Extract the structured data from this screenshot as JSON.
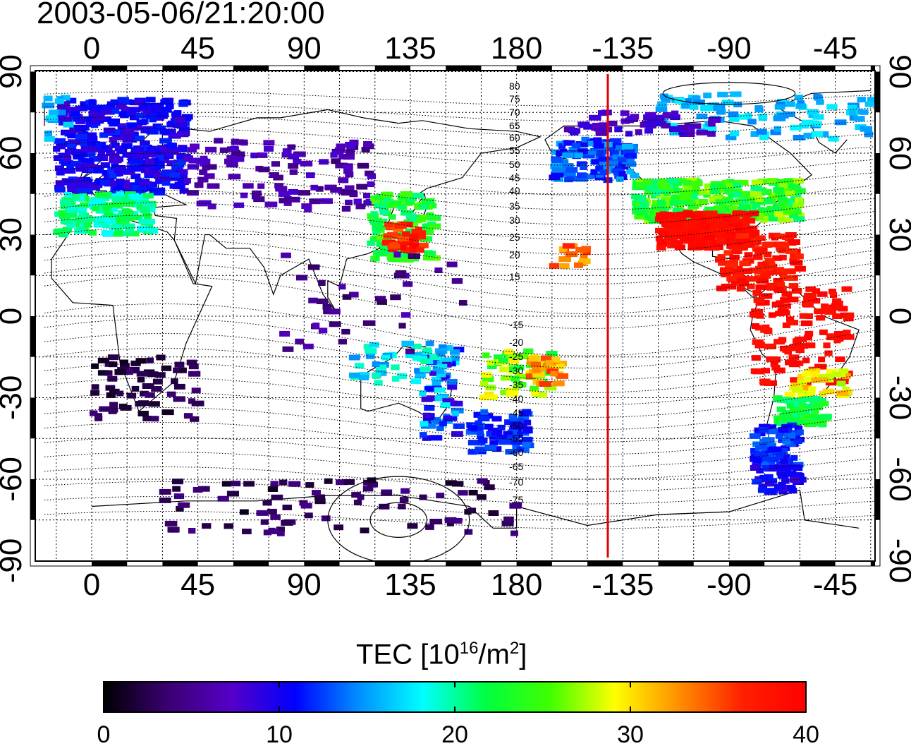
{
  "title": "2003-05-06/21:20:00",
  "map": {
    "top_lon_ticks": [
      "0",
      "45",
      "90",
      "135",
      "180",
      "-135",
      "-90",
      "-45"
    ],
    "bottom_lon_ticks": [
      "0",
      "45",
      "90",
      "135",
      "180",
      "-135",
      "-90",
      "-45"
    ],
    "left_lat_ticks": [
      "90",
      "60",
      "30",
      "0",
      "-30",
      "-60",
      "-90"
    ],
    "right_lat_ticks": [
      "90",
      "60",
      "30",
      "0",
      "-30",
      "-60",
      "-90"
    ],
    "contour_labels_north": [
      "80",
      "75",
      "70",
      "65",
      "60",
      "55",
      "50",
      "45",
      "40",
      "35",
      "30",
      "25",
      "20",
      "15"
    ],
    "contour_labels_south": [
      "-15",
      "-20",
      "-25",
      "-30",
      "-35",
      "-40",
      "-45",
      "-50",
      "-55",
      "-60",
      "-65",
      "-70",
      "-75"
    ],
    "marker_line_color": "#e00000"
  },
  "colorbar": {
    "title_main": "TEC  [10",
    "title_sup1": "16",
    "title_mid": "/m",
    "title_sup2": "2",
    "title_end": "]",
    "ticks": [
      "0",
      "10",
      "20",
      "30",
      "40"
    ],
    "range": [
      0,
      40
    ],
    "colors": [
      "#000000",
      "#3a0070",
      "#5500c8",
      "#0000ff",
      "#0090ff",
      "#00ffff",
      "#00ff40",
      "#40ff00",
      "#ffff00",
      "#ff9000",
      "#ff2000",
      "#ff0000"
    ]
  }
}
